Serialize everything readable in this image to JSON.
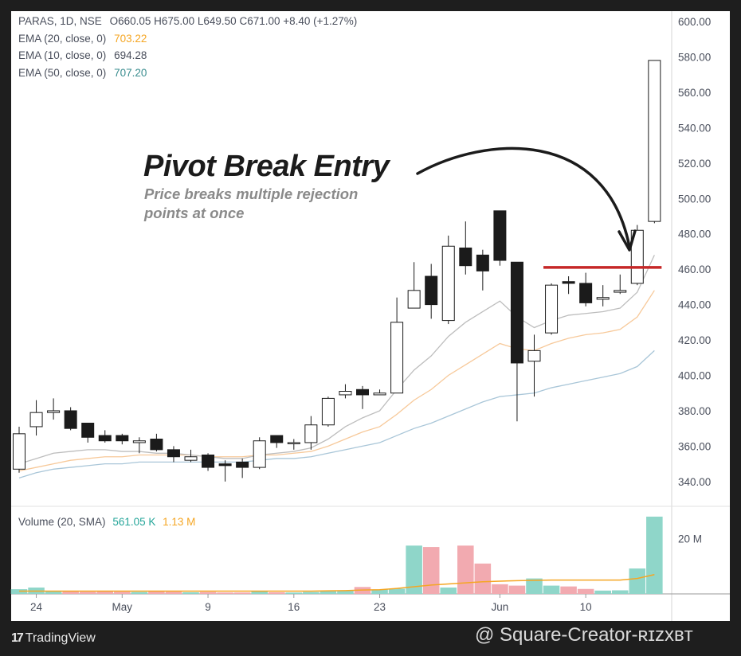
{
  "header": {
    "symbol_line": "PARAS, 1D, NSE",
    "ohlc": "O660.05  H675.00  L649.50  C671.00  +8.40 (+1.27%)"
  },
  "legend": [
    {
      "label": "EMA (20, close, 0)",
      "value": "703.22",
      "color": "#f5a623"
    },
    {
      "label": "EMA (10, close, 0)",
      "value": "694.28",
      "color": "#4a4f5c"
    },
    {
      "label": "EMA (50, close, 0)",
      "value": "707.20",
      "color": "#3a8d8f"
    }
  ],
  "annotation": {
    "title": "Pivot Break Entry",
    "subtitle_line1": "Price breaks multiple rejection",
    "subtitle_line2": "points at once"
  },
  "volume_legend": {
    "label": "Volume (20, SMA)",
    "value1": "561.05 K",
    "value1_color": "#26a69a",
    "value2": "1.13 M",
    "value2_color": "#f5a623"
  },
  "branding": {
    "logo_mark": "17",
    "logo_text": "TradingView",
    "watermark": "@ Square-Creator-ʀɪᴢxʙᴛ"
  },
  "colors": {
    "bull_candle": "#ffffff",
    "bear_candle": "#1b1b1b",
    "ema10": "#bdbdbd",
    "ema20": "#f7c99a",
    "ema50": "#a9c6d8",
    "vol_up": "#8fd6c9",
    "vol_down": "#f2aab0",
    "vol_sma": "#f5a623",
    "breakout_line": "#c62828"
  },
  "chart_data": {
    "type": "candlestick",
    "price_axis": {
      "ticks": [
        600,
        580,
        560,
        540,
        520,
        500,
        480,
        460,
        440,
        420,
        400,
        380,
        360,
        340
      ],
      "labels": [
        "600.00",
        "580.00",
        "560.00",
        "540.00",
        "520.00",
        "500.00",
        "480.00",
        "460.00",
        "440.00",
        "420.00",
        "400.00",
        "380.00",
        "360.00",
        "340.00"
      ]
    },
    "volume_axis": {
      "ticks": [
        20000000
      ],
      "labels": [
        "20 M"
      ]
    },
    "x_labels": [
      {
        "index": 1,
        "label": "24"
      },
      {
        "index": 6,
        "label": "May"
      },
      {
        "index": 11,
        "label": "9"
      },
      {
        "index": 16,
        "label": "16"
      },
      {
        "index": 21,
        "label": "23"
      },
      {
        "index": 28,
        "label": "Jun"
      },
      {
        "index": 33,
        "label": "10"
      }
    ],
    "candles": [
      {
        "o": 347,
        "h": 371,
        "l": 345,
        "c": 367
      },
      {
        "o": 371,
        "h": 386,
        "l": 366,
        "c": 379
      },
      {
        "o": 379,
        "h": 387,
        "l": 375,
        "c": 380
      },
      {
        "o": 380,
        "h": 382,
        "l": 369,
        "c": 370
      },
      {
        "o": 373,
        "h": 373,
        "l": 362,
        "c": 365
      },
      {
        "o": 366,
        "h": 369,
        "l": 362,
        "c": 363
      },
      {
        "o": 366,
        "h": 367,
        "l": 361,
        "c": 363
      },
      {
        "o": 362,
        "h": 365,
        "l": 356,
        "c": 363
      },
      {
        "o": 364,
        "h": 367,
        "l": 357,
        "c": 358
      },
      {
        "o": 358,
        "h": 360,
        "l": 351,
        "c": 354
      },
      {
        "o": 352,
        "h": 358,
        "l": 351,
        "c": 354
      },
      {
        "o": 355,
        "h": 356,
        "l": 346,
        "c": 348
      },
      {
        "o": 350,
        "h": 352,
        "l": 340,
        "c": 349
      },
      {
        "o": 351,
        "h": 353,
        "l": 342,
        "c": 348
      },
      {
        "o": 348,
        "h": 365,
        "l": 347,
        "c": 363
      },
      {
        "o": 366,
        "h": 366,
        "l": 359,
        "c": 362
      },
      {
        "o": 362,
        "h": 364,
        "l": 358,
        "c": 362
      },
      {
        "o": 362,
        "h": 377,
        "l": 358,
        "c": 372
      },
      {
        "o": 372,
        "h": 388,
        "l": 371,
        "c": 387
      },
      {
        "o": 389,
        "h": 395,
        "l": 387,
        "c": 391
      },
      {
        "o": 392,
        "h": 394,
        "l": 381,
        "c": 389
      },
      {
        "o": 389,
        "h": 392,
        "l": 389,
        "c": 390
      },
      {
        "o": 390,
        "h": 444,
        "l": 390,
        "c": 430
      },
      {
        "o": 438,
        "h": 464,
        "l": 438,
        "c": 448
      },
      {
        "o": 456,
        "h": 463,
        "l": 432,
        "c": 440
      },
      {
        "o": 431,
        "h": 479,
        "l": 429,
        "c": 473
      },
      {
        "o": 472,
        "h": 487,
        "l": 457,
        "c": 462
      },
      {
        "o": 468,
        "h": 471,
        "l": 448,
        "c": 459
      },
      {
        "o": 493,
        "h": 493,
        "l": 462,
        "c": 465
      },
      {
        "o": 464,
        "h": 464,
        "l": 374,
        "c": 407
      },
      {
        "o": 408,
        "h": 423,
        "l": 388,
        "c": 414
      },
      {
        "o": 424,
        "h": 452,
        "l": 423,
        "c": 451
      },
      {
        "o": 453,
        "h": 456,
        "l": 446,
        "c": 452
      },
      {
        "o": 452,
        "h": 458,
        "l": 439,
        "c": 441
      },
      {
        "o": 443,
        "h": 451,
        "l": 439,
        "c": 444
      },
      {
        "o": 447,
        "h": 457,
        "l": 446,
        "c": 448
      },
      {
        "o": 452,
        "h": 485,
        "l": 451,
        "c": 482
      },
      {
        "o": 487,
        "h": 578,
        "l": 486,
        "c": 578
      }
    ],
    "ema10": [
      350,
      353,
      356,
      357,
      358,
      358,
      357,
      357,
      356,
      356,
      355,
      354,
      353,
      353,
      355,
      356,
      357,
      359,
      364,
      371,
      376,
      380,
      392,
      403,
      411,
      422,
      430,
      436,
      442,
      433,
      427,
      431,
      434,
      435,
      436,
      438,
      447,
      468
    ],
    "ema20": [
      346,
      348,
      350,
      352,
      353,
      354,
      354,
      355,
      355,
      355,
      355,
      354,
      354,
      354,
      355,
      355,
      356,
      357,
      360,
      364,
      368,
      371,
      378,
      386,
      392,
      400,
      406,
      412,
      418,
      415,
      414,
      418,
      421,
      423,
      424,
      426,
      433,
      448
    ],
    "ema50": [
      342,
      345,
      347,
      348,
      349,
      350,
      350,
      351,
      351,
      351,
      351,
      351,
      351,
      351,
      352,
      353,
      353,
      354,
      356,
      358,
      360,
      362,
      366,
      370,
      373,
      377,
      381,
      385,
      388,
      389,
      390,
      393,
      395,
      397,
      399,
      401,
      405,
      414
    ],
    "volume_m": [
      1.7,
      2.3,
      1.1,
      1.0,
      0.8,
      0.9,
      0.8,
      0.7,
      0.9,
      0.8,
      0.6,
      0.7,
      0.5,
      0.5,
      0.9,
      0.6,
      0.5,
      0.7,
      1.0,
      1.2,
      2.5,
      1.6,
      1.9,
      17.5,
      17.0,
      2.3,
      17.5,
      11.0,
      3.5,
      3.0,
      5.6,
      3.0,
      2.7,
      1.8,
      1.2,
      1.3,
      9.2,
      28.0
    ],
    "volume_sma_m": [
      1.0,
      1.0,
      1.0,
      1.0,
      1.0,
      1.0,
      1.0,
      1.0,
      1.0,
      1.0,
      1.0,
      1.0,
      1.0,
      1.0,
      1.0,
      1.0,
      1.0,
      1.0,
      1.1,
      1.2,
      1.4,
      1.5,
      2.0,
      2.6,
      3.2,
      3.6,
      4.0,
      4.4,
      4.6,
      4.8,
      4.9,
      5.0,
      5.0,
      5.0,
      5.0,
      5.0,
      5.6,
      7.0
    ],
    "breakout_level": 461
  }
}
